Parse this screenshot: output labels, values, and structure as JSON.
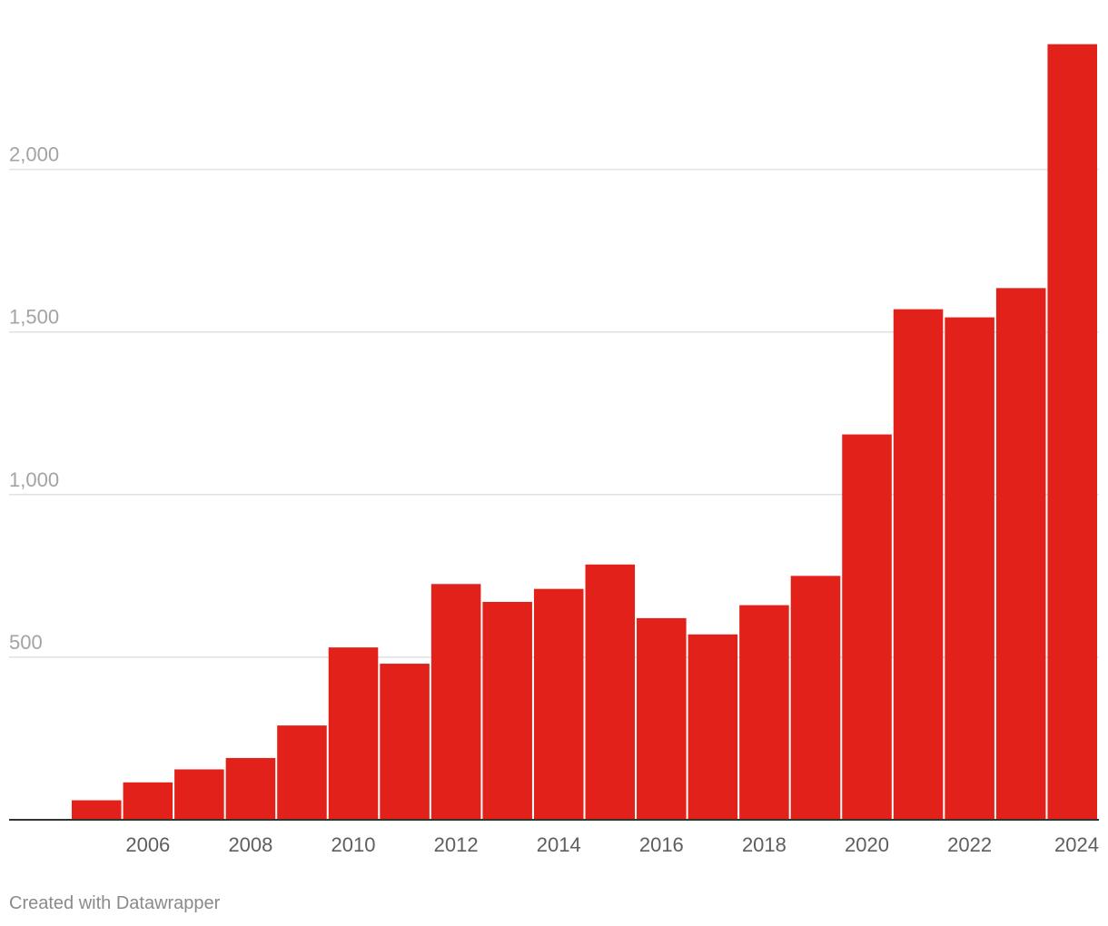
{
  "chart_data": {
    "type": "bar",
    "categories": [
      "2005",
      "2006",
      "2007",
      "2008",
      "2009",
      "2010",
      "2011",
      "2012",
      "2013",
      "2014",
      "2015",
      "2016",
      "2017",
      "2018",
      "2019",
      "2020",
      "2021",
      "2022",
      "2023",
      "2024"
    ],
    "values": [
      60,
      115,
      155,
      190,
      290,
      530,
      480,
      725,
      670,
      710,
      785,
      620,
      570,
      660,
      750,
      1185,
      1570,
      1545,
      1635,
      2385
    ],
    "x_tick_labels": [
      "2006",
      "2008",
      "2010",
      "2012",
      "2014",
      "2016",
      "2018",
      "2020",
      "2022",
      "2024"
    ],
    "y_ticks": [
      500,
      1000,
      1500,
      2000
    ],
    "y_tick_labels": [
      "500",
      "1,000",
      "1,500",
      "2,000"
    ],
    "ylim": [
      0,
      2500
    ],
    "bar_color": "#e3211b",
    "grid": true,
    "legend": "none",
    "title": "",
    "xlabel": "",
    "ylabel": ""
  },
  "footer": {
    "credit": "Created with Datawrapper"
  }
}
